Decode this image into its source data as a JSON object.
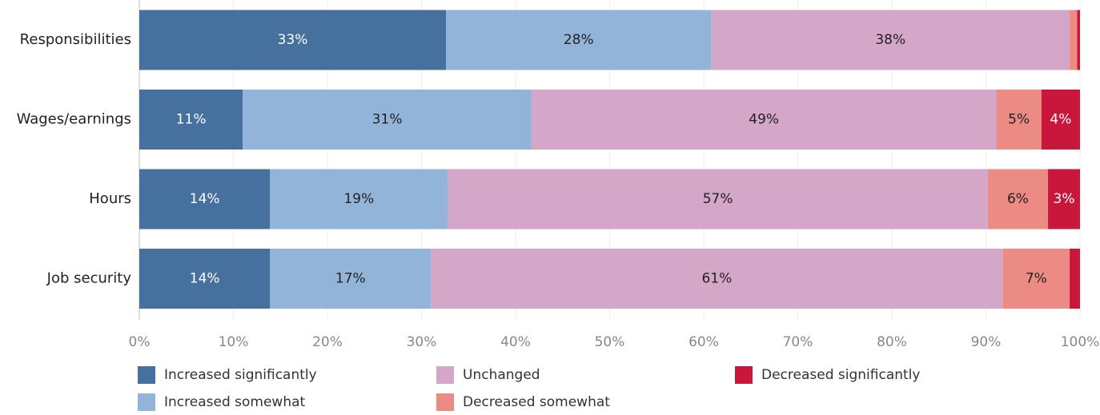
{
  "chart_data": {
    "type": "stacked-bar-horizontal",
    "categories": [
      "Responsibilities",
      "Wages/earnings",
      "Hours",
      "Job security"
    ],
    "series": [
      {
        "name": "Increased significantly",
        "color": "#46709d",
        "values": [
          32.6,
          11.0,
          13.9,
          13.9
        ],
        "value_labels": [
          "33%",
          "11%",
          "14%",
          "14%"
        ]
      },
      {
        "name": "Increased somewhat",
        "color": "#93b4d9",
        "values": [
          28.2,
          30.7,
          18.9,
          17.1
        ],
        "value_labels": [
          "28%",
          "31%",
          "19%",
          "17%"
        ]
      },
      {
        "name": "Unchanged",
        "color": "#d4a6c8",
        "values": [
          38.1,
          49.4,
          57.4,
          60.8
        ],
        "value_labels": [
          "38%",
          "49%",
          "57%",
          "61%"
        ]
      },
      {
        "name": "Decreased somewhat",
        "color": "#ec8b83",
        "values": [
          0.8,
          4.8,
          6.4,
          7.1
        ],
        "value_labels": [
          null,
          "5%",
          "6%",
          "7%"
        ]
      },
      {
        "name": "Decreased significantly",
        "color": "#c8173b",
        "values": [
          0.3,
          4.1,
          3.4,
          1.1
        ],
        "value_labels": [
          null,
          "4%",
          "3%",
          null
        ]
      }
    ],
    "xlim": [
      0,
      100
    ],
    "xticks": [
      {
        "value": 0,
        "label": "0%"
      },
      {
        "value": 10,
        "label": "10%"
      },
      {
        "value": 20,
        "label": "20%"
      },
      {
        "value": 30,
        "label": "30%"
      },
      {
        "value": 40,
        "label": "40%"
      },
      {
        "value": 50,
        "label": "50%"
      },
      {
        "value": 60,
        "label": "60%"
      },
      {
        "value": 70,
        "label": "70%"
      },
      {
        "value": 80,
        "label": "80%"
      },
      {
        "value": 90,
        "label": "90%"
      },
      {
        "value": 100,
        "label": "100%"
      }
    ],
    "grid": true
  }
}
